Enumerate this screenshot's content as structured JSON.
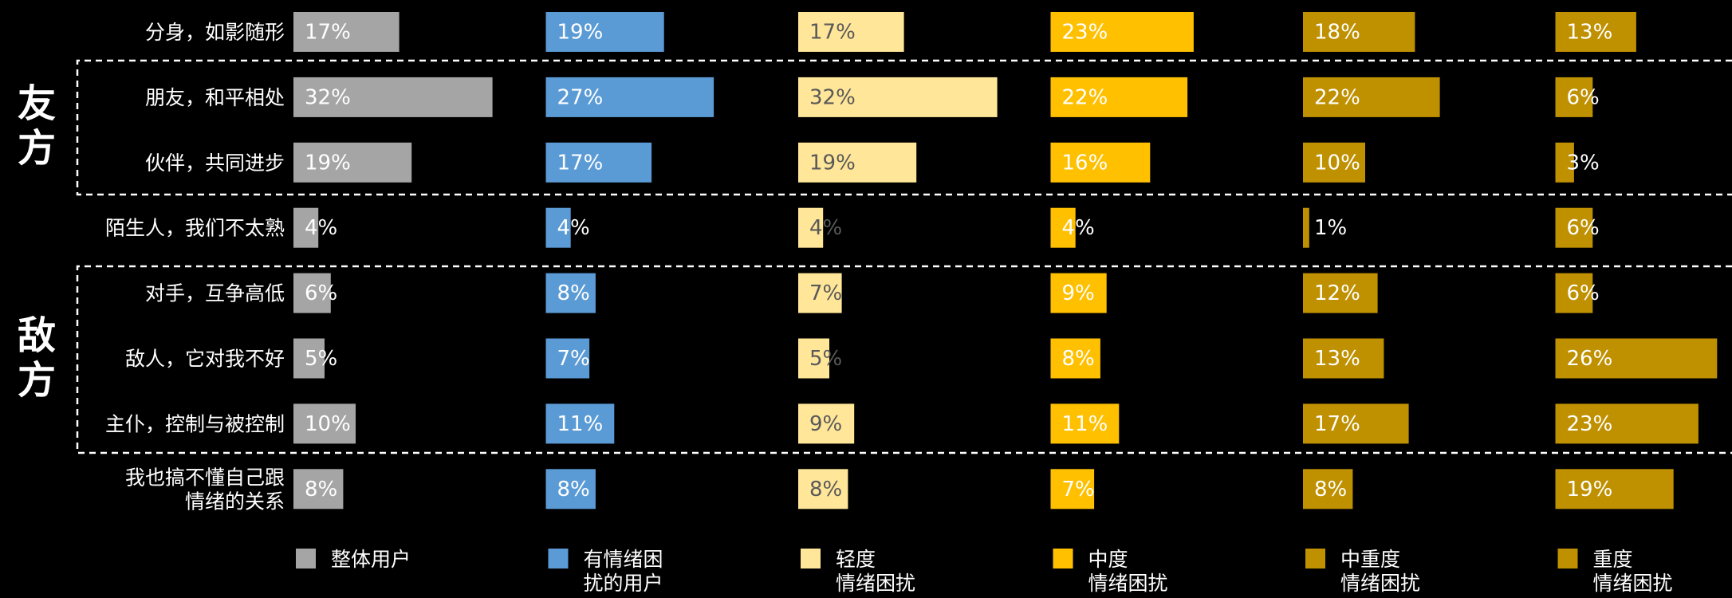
{
  "chart_data": {
    "type": "bar",
    "orientation": "horizontal",
    "group_labels": [
      "友方",
      "敌方"
    ],
    "categories": [
      "分身，如影随形",
      "朋友，和平相处",
      "伙伴，共同进步",
      "陌生人，我们不太熟",
      "对手，互争高低",
      "敌人，它对我不好",
      "主仆，控制与被控制",
      "我也搞不懂自己跟\n情绪的关系"
    ],
    "series": [
      {
        "name": "整体用户",
        "color": "#a5a5a5",
        "values": [
          17,
          32,
          19,
          4,
          6,
          5,
          10,
          8
        ],
        "value_labels": [
          "17%",
          "32%",
          "19%",
          "4%",
          "6%",
          "5%",
          "10%",
          "8%"
        ]
      },
      {
        "name": "有情绪困\n扰的用户",
        "color": "#5b9bd5",
        "values": [
          19,
          27,
          17,
          4,
          8,
          7,
          11,
          8
        ],
        "value_labels": [
          "19%",
          "27%",
          "17%",
          "4%",
          "8%",
          "7%",
          "11%",
          "8%"
        ]
      },
      {
        "name": "轻度\n情绪困扰",
        "color": "#ffe699",
        "values": [
          17,
          32,
          19,
          4,
          7,
          5,
          9,
          8
        ],
        "value_labels": [
          "17%",
          "32%",
          "19%",
          "4%",
          "7%",
          "5%",
          "9%",
          "8%"
        ]
      },
      {
        "name": "中度\n情绪困扰",
        "color": "#ffc000",
        "values": [
          23,
          22,
          16,
          4,
          9,
          8,
          11,
          7
        ],
        "value_labels": [
          "23%",
          "22%",
          "16%",
          "4%",
          "9%",
          "8%",
          "11%",
          "7%"
        ]
      },
      {
        "name": "中重度\n情绪困扰",
        "color": "#bf9000",
        "values": [
          18,
          22,
          10,
          1,
          12,
          13,
          17,
          8
        ],
        "value_labels": [
          "18%",
          "22%",
          "10%",
          "1%",
          "12%",
          "13%",
          "17%",
          "8%"
        ]
      },
      {
        "name": "重度\n情绪困扰",
        "color": "#bf9000",
        "values": [
          13,
          6,
          3,
          6,
          6,
          26,
          23,
          19
        ],
        "value_labels": [
          "13%",
          "6%",
          "3%",
          "6%",
          "6%",
          "26%",
          "23%",
          "19%"
        ]
      }
    ]
  }
}
